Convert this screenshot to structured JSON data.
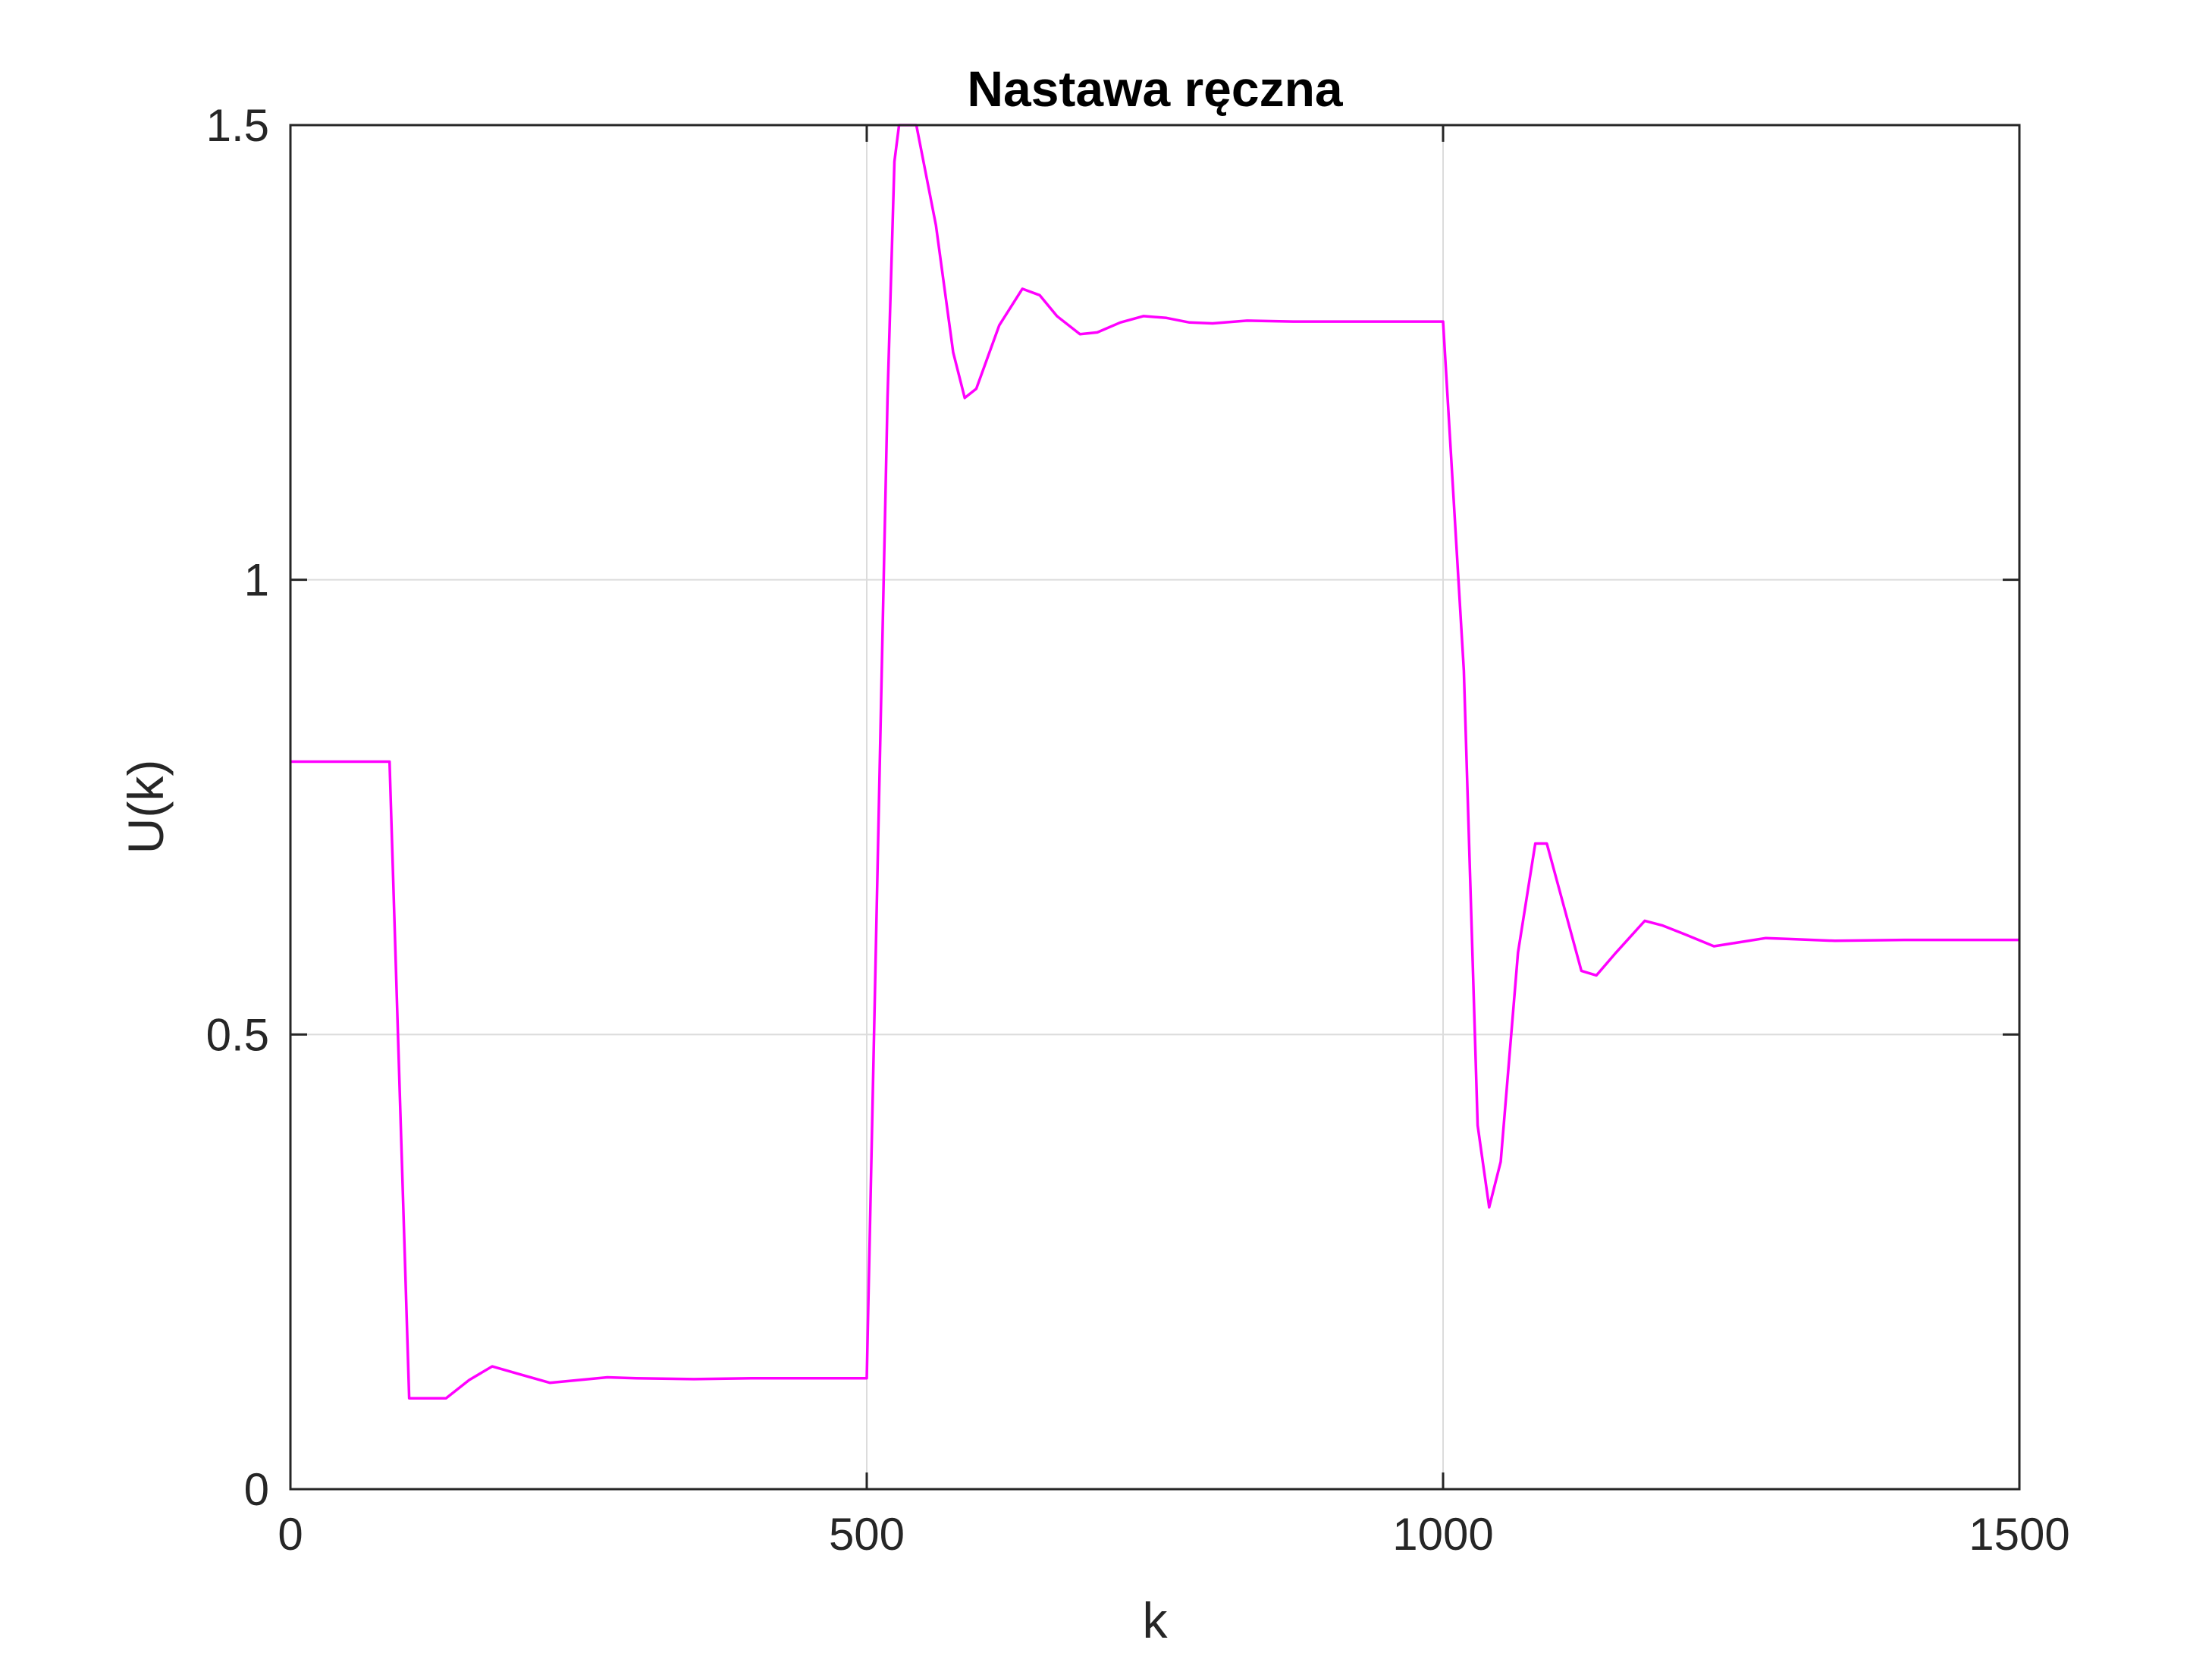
{
  "chart_data": {
    "type": "line",
    "title": "Nastawa ręczna",
    "xlabel": "k",
    "ylabel": "U(k)",
    "xlim": [
      0,
      1500
    ],
    "ylim": [
      0,
      1.5
    ],
    "xticks": [
      0,
      500,
      1000,
      1500
    ],
    "xtick_labels": [
      "0",
      "500",
      "1000",
      "1500"
    ],
    "yticks": [
      0,
      0.5,
      1,
      1.5
    ],
    "ytick_labels": [
      "0",
      "0.5",
      "1",
      "1.5"
    ],
    "grid": true,
    "colors": {
      "series": "#ff00ff",
      "axes": "#262626",
      "grid": "#dcdcdc"
    },
    "series": [
      {
        "points": [
          [
            0,
            0.8
          ],
          [
            86,
            0.8
          ],
          [
            103,
            0.1
          ],
          [
            135,
            0.1
          ],
          [
            155,
            0.12
          ],
          [
            175,
            0.135
          ],
          [
            200,
            0.126
          ],
          [
            225,
            0.117
          ],
          [
            250,
            0.12
          ],
          [
            275,
            0.123
          ],
          [
            300,
            0.122
          ],
          [
            350,
            0.121
          ],
          [
            400,
            0.122
          ],
          [
            499,
            0.122
          ],
          [
            500,
            0.122
          ],
          [
            518,
            1.2
          ],
          [
            524,
            1.46
          ],
          [
            528,
            1.5
          ],
          [
            543,
            1.5
          ],
          [
            560,
            1.39
          ],
          [
            575,
            1.25
          ],
          [
            585,
            1.2
          ],
          [
            595,
            1.21
          ],
          [
            615,
            1.28
          ],
          [
            635,
            1.32
          ],
          [
            650,
            1.313
          ],
          [
            665,
            1.29
          ],
          [
            685,
            1.27
          ],
          [
            700,
            1.272
          ],
          [
            720,
            1.283
          ],
          [
            740,
            1.29
          ],
          [
            760,
            1.288
          ],
          [
            780,
            1.283
          ],
          [
            800,
            1.282
          ],
          [
            830,
            1.285
          ],
          [
            870,
            1.284
          ],
          [
            1000,
            1.284
          ],
          [
            1018,
            0.9
          ],
          [
            1030,
            0.4
          ],
          [
            1040,
            0.31
          ],
          [
            1050,
            0.36
          ],
          [
            1065,
            0.59
          ],
          [
            1080,
            0.71
          ],
          [
            1090,
            0.71
          ],
          [
            1105,
            0.64
          ],
          [
            1120,
            0.57
          ],
          [
            1133,
            0.565
          ],
          [
            1150,
            0.59
          ],
          [
            1175,
            0.625
          ],
          [
            1190,
            0.62
          ],
          [
            1210,
            0.61
          ],
          [
            1235,
            0.597
          ],
          [
            1250,
            0.6
          ],
          [
            1280,
            0.606
          ],
          [
            1300,
            0.605
          ],
          [
            1340,
            0.603
          ],
          [
            1400,
            0.604
          ],
          [
            1500,
            0.604
          ]
        ]
      }
    ]
  }
}
